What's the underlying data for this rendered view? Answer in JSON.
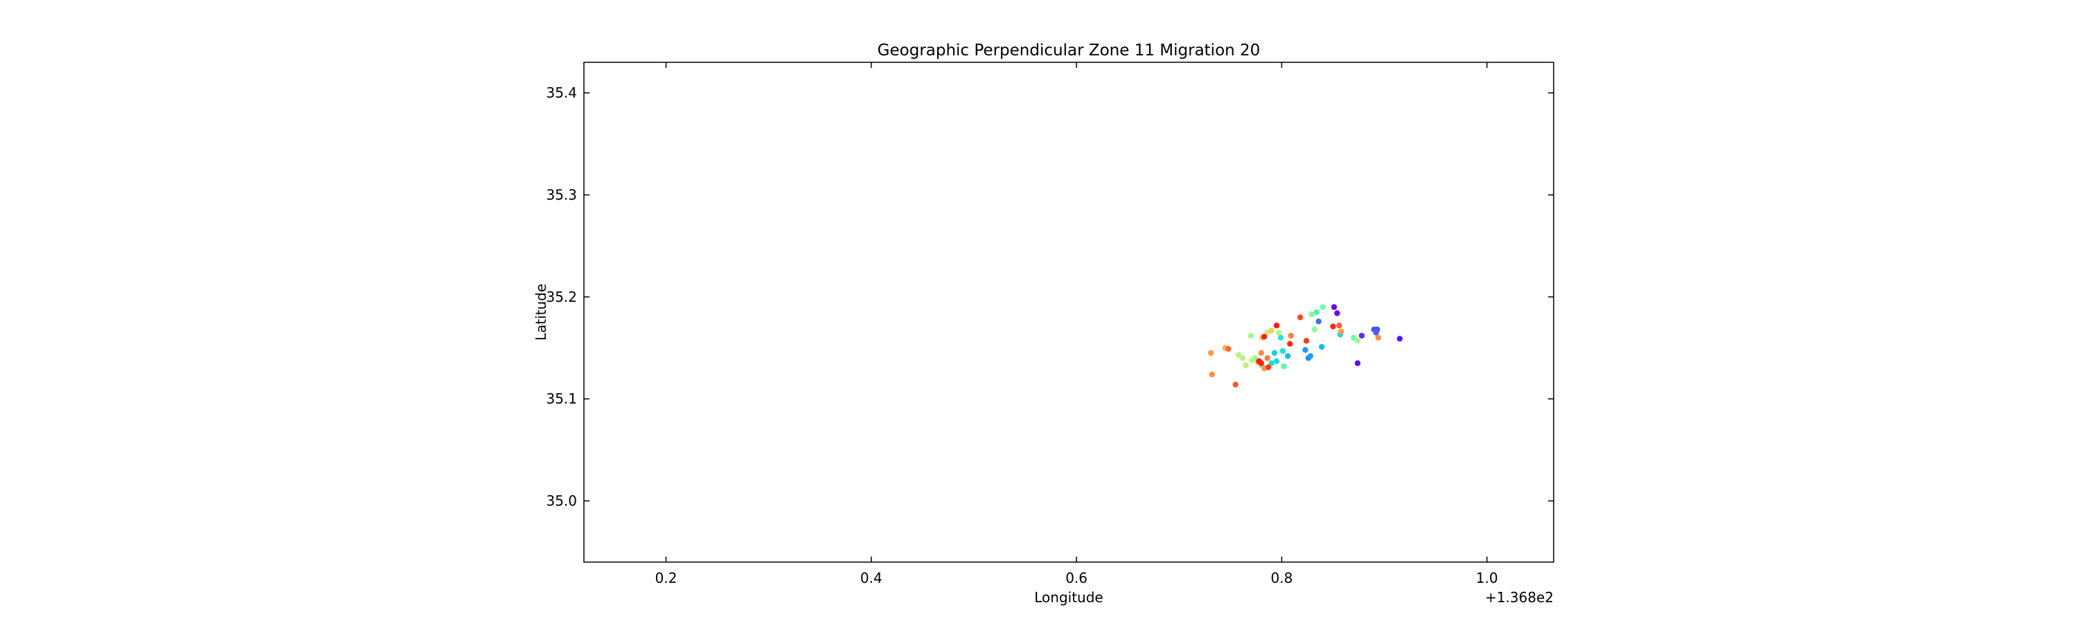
{
  "chart_data": {
    "type": "scatter",
    "title": "Geographic Perpendicular Zone 11 Migration 20",
    "xlabel": "Longitude",
    "ylabel": "Latitude",
    "x_offset_label": "+1.368e2",
    "xlim": [
      0.12,
      1.065
    ],
    "ylim": [
      34.94,
      35.43
    ],
    "xticks": [
      0.2,
      0.4,
      0.6,
      0.8,
      1.0
    ],
    "xtick_labels": [
      "0.2",
      "0.4",
      "0.6",
      "0.8",
      "1.0"
    ],
    "yticks": [
      35.0,
      35.1,
      35.2,
      35.3,
      35.4
    ],
    "ytick_labels": [
      "35.0",
      "35.1",
      "35.2",
      "35.3",
      "35.4"
    ],
    "grid": false,
    "points": [
      {
        "x": 0.851,
        "y": 35.19,
        "color": "#6a00f8"
      },
      {
        "x": 0.854,
        "y": 35.184,
        "color": "#6a00f8"
      },
      {
        "x": 0.915,
        "y": 35.159,
        "color": "#5018f8"
      },
      {
        "x": 0.874,
        "y": 35.135,
        "color": "#6a00f8"
      },
      {
        "x": 0.878,
        "y": 35.162,
        "color": "#5a30f0"
      },
      {
        "x": 0.89,
        "y": 35.168,
        "color": "#4a50ef"
      },
      {
        "x": 0.893,
        "y": 35.168,
        "color": "#4a50ef"
      },
      {
        "x": 0.892,
        "y": 35.165,
        "color": "#4a60ef"
      },
      {
        "x": 0.836,
        "y": 35.176,
        "color": "#3a70ee"
      },
      {
        "x": 0.826,
        "y": 35.14,
        "color": "#2a86ef"
      },
      {
        "x": 0.823,
        "y": 35.148,
        "color": "#1a9cf0"
      },
      {
        "x": 0.828,
        "y": 35.142,
        "color": "#1aa0f0"
      },
      {
        "x": 0.839,
        "y": 35.151,
        "color": "#10c0e8"
      },
      {
        "x": 0.806,
        "y": 35.142,
        "color": "#10c0e8"
      },
      {
        "x": 0.793,
        "y": 35.145,
        "color": "#18d0e0"
      },
      {
        "x": 0.795,
        "y": 35.137,
        "color": "#20d8d8"
      },
      {
        "x": 0.79,
        "y": 35.135,
        "color": "#20dcd4"
      },
      {
        "x": 0.799,
        "y": 35.16,
        "color": "#30e4cc"
      },
      {
        "x": 0.801,
        "y": 35.147,
        "color": "#28e0d0"
      },
      {
        "x": 0.857,
        "y": 35.163,
        "color": "#20d8d8"
      },
      {
        "x": 0.802,
        "y": 35.132,
        "color": "#60f8b0"
      },
      {
        "x": 0.834,
        "y": 35.185,
        "color": "#50f4b8"
      },
      {
        "x": 0.84,
        "y": 35.19,
        "color": "#70fca8"
      },
      {
        "x": 0.829,
        "y": 35.183,
        "color": "#80fea0"
      },
      {
        "x": 0.87,
        "y": 35.16,
        "color": "#70fca8"
      },
      {
        "x": 0.874,
        "y": 35.157,
        "color": "#a0fc90"
      },
      {
        "x": 0.832,
        "y": 35.168,
        "color": "#90fa98"
      },
      {
        "x": 0.797,
        "y": 35.165,
        "color": "#b0f888"
      },
      {
        "x": 0.77,
        "y": 35.162,
        "color": "#a8f88c"
      },
      {
        "x": 0.774,
        "y": 35.14,
        "color": "#90fa98"
      },
      {
        "x": 0.78,
        "y": 35.133,
        "color": "#80fea0"
      },
      {
        "x": 0.762,
        "y": 35.14,
        "color": "#b8f484"
      },
      {
        "x": 0.758,
        "y": 35.143,
        "color": "#c8ee7c"
      },
      {
        "x": 0.765,
        "y": 35.133,
        "color": "#d0ea78"
      },
      {
        "x": 0.771,
        "y": 35.138,
        "color": "#b0f888"
      },
      {
        "x": 0.786,
        "y": 35.165,
        "color": "#d8e474"
      },
      {
        "x": 0.79,
        "y": 35.167,
        "color": "#e8d46a"
      },
      {
        "x": 0.781,
        "y": 35.16,
        "color": "#f0c062"
      },
      {
        "x": 0.78,
        "y": 35.145,
        "color": "#ff8c46"
      },
      {
        "x": 0.777,
        "y": 35.136,
        "color": "#ffa050"
      },
      {
        "x": 0.783,
        "y": 35.13,
        "color": "#ff9a4c"
      },
      {
        "x": 0.745,
        "y": 35.15,
        "color": "#ffb058"
      },
      {
        "x": 0.732,
        "y": 35.124,
        "color": "#ff9048"
      },
      {
        "x": 0.731,
        "y": 35.145,
        "color": "#ff9a4c"
      },
      {
        "x": 0.748,
        "y": 35.149,
        "color": "#ff6a34"
      },
      {
        "x": 0.755,
        "y": 35.114,
        "color": "#ff5a2c"
      },
      {
        "x": 0.786,
        "y": 35.14,
        "color": "#ff7a3c"
      },
      {
        "x": 0.809,
        "y": 35.162,
        "color": "#ff8040"
      },
      {
        "x": 0.858,
        "y": 35.166,
        "color": "#ff9a4c"
      },
      {
        "x": 0.894,
        "y": 35.16,
        "color": "#ff8c46"
      },
      {
        "x": 0.856,
        "y": 35.172,
        "color": "#ff6030"
      },
      {
        "x": 0.818,
        "y": 35.18,
        "color": "#ff4a24"
      },
      {
        "x": 0.824,
        "y": 35.157,
        "color": "#ff3a1c"
      },
      {
        "x": 0.795,
        "y": 35.172,
        "color": "#ff1c0e"
      },
      {
        "x": 0.783,
        "y": 35.161,
        "color": "#ff2010"
      },
      {
        "x": 0.808,
        "y": 35.154,
        "color": "#ff2a14"
      },
      {
        "x": 0.85,
        "y": 35.171,
        "color": "#ff2a14"
      },
      {
        "x": 0.778,
        "y": 35.137,
        "color": "#ff1c0e"
      },
      {
        "x": 0.78,
        "y": 35.135,
        "color": "#ff2010"
      },
      {
        "x": 0.787,
        "y": 35.131,
        "color": "#ff3a1c"
      }
    ]
  }
}
